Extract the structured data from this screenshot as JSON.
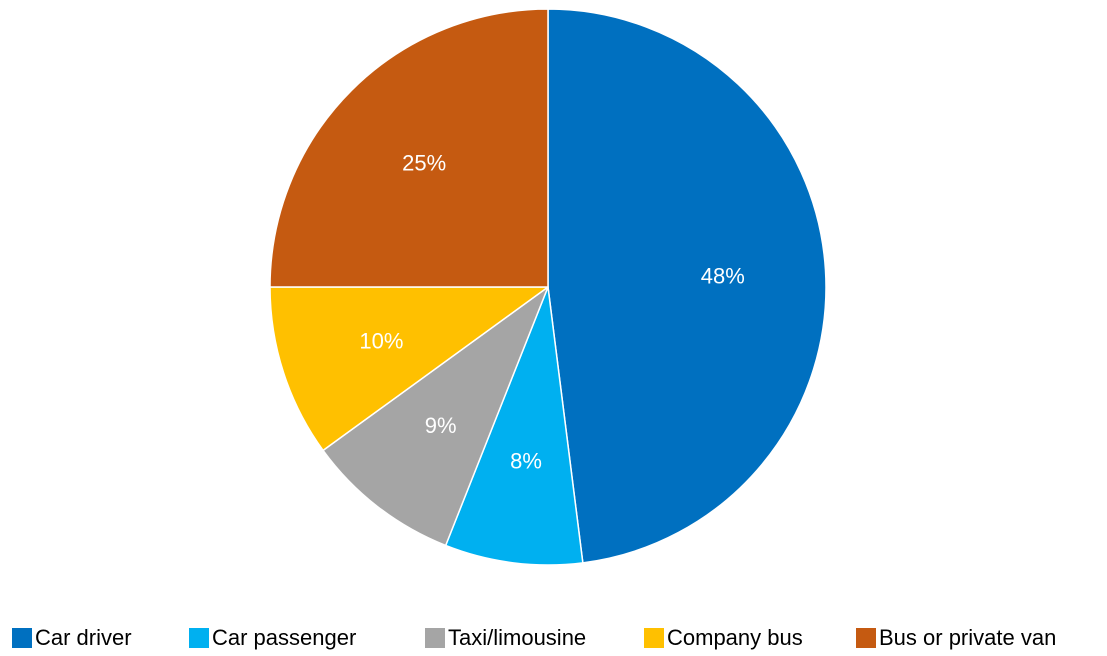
{
  "chart_data": {
    "type": "pie",
    "title": "",
    "start_angle_deg": 0,
    "direction": "clockwise",
    "slices": [
      {
        "label": "Car driver",
        "value": 48,
        "display": "48%",
        "color": "#0070C0"
      },
      {
        "label": "Car passenger",
        "value": 8,
        "display": "8%",
        "color": "#00B0F0"
      },
      {
        "label": "Taxi/limousine",
        "value": 9,
        "display": "9%",
        "color": "#A5A5A5"
      },
      {
        "label": "Company bus",
        "value": 10,
        "display": "10%",
        "color": "#FFC000"
      },
      {
        "label": "Bus or private van",
        "value": 25,
        "display": "25%",
        "color": "#C55A11"
      }
    ],
    "legend_position": "bottom"
  }
}
